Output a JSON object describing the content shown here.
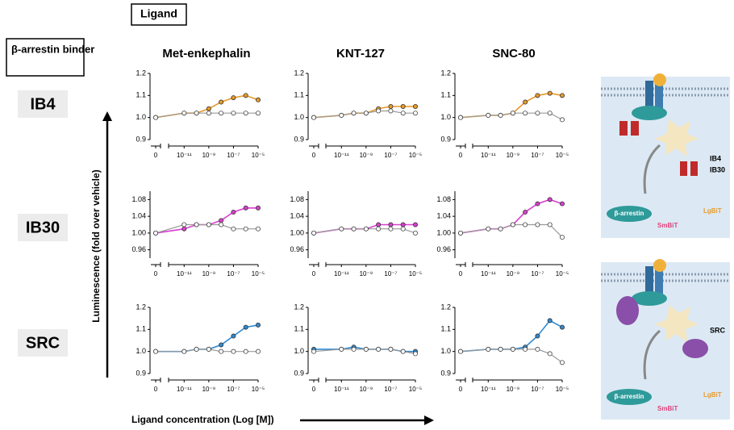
{
  "header": {
    "ligand": "Ligand",
    "binder": "β-arrestin binder"
  },
  "columns": [
    "Met-enkephalin",
    "KNT-127",
    "SNC-80"
  ],
  "rows": [
    "IB4",
    "IB30",
    "SRC"
  ],
  "y_axis_label": "Luminescence (fold over vehicle)",
  "x_axis_label": "Ligand concentration (Log [M])",
  "diagrams": [
    {
      "binder_1": "IB4",
      "binder_2": "IB30",
      "arrestin": "β-arrestin",
      "smbit": "SmBiT",
      "lgbit": "LgBiT"
    },
    {
      "binder_1": "SRC",
      "arrestin": "β-arrestin",
      "smbit": "SmBiT",
      "lgbit": "LgBiT"
    }
  ],
  "chart_data": [
    {
      "type": "line",
      "xscale": "log",
      "x": [
        0,
        1e-11,
        1e-10,
        1e-09,
        1e-08,
        1e-07,
        1e-06,
        1e-05
      ],
      "xlim": [
        1e-12,
        1e-05
      ],
      "xticks": [
        0,
        {
          "value": 1e-11,
          "label": "10⁻¹¹"
        },
        {
          "value": 1e-09,
          "label": "10⁻⁹"
        },
        {
          "value": 1e-07,
          "label": "10⁻⁷"
        },
        {
          "value": 1e-05,
          "label": "10⁻⁵"
        }
      ],
      "ylim": [
        0.9,
        1.2
      ],
      "yticks": [
        0.9,
        {
          "value": 1,
          "label": "1.0"
        },
        1.1,
        1.2
      ],
      "series": [
        {
          "color": "#e89a2c",
          "values": [
            1.0,
            1.02,
            1.02,
            1.04,
            1.07,
            1.09,
            1.1,
            1.08
          ]
        },
        {
          "color": "#9a9a9a",
          "values": [
            1.0,
            1.02,
            1.02,
            1.02,
            1.02,
            1.02,
            1.02,
            1.02
          ]
        }
      ]
    },
    {
      "type": "line",
      "xscale": "log",
      "x": [
        0,
        1e-11,
        1e-10,
        1e-09,
        1e-08,
        1e-07,
        1e-06,
        1e-05
      ],
      "xlim": [
        1e-12,
        1e-05
      ],
      "xticks": [
        0,
        {
          "value": 1e-11,
          "label": "10⁻¹¹"
        },
        {
          "value": 1e-09,
          "label": "10⁻⁹"
        },
        {
          "value": 1e-07,
          "label": "10⁻⁷"
        },
        {
          "value": 1e-05,
          "label": "10⁻⁵"
        }
      ],
      "ylim": [
        0.9,
        1.2
      ],
      "yticks": [
        0.9,
        {
          "value": 1,
          "label": "1.0"
        },
        1.1,
        1.2
      ],
      "series": [
        {
          "color": "#e89a2c",
          "values": [
            1.0,
            1.01,
            1.02,
            1.02,
            1.04,
            1.05,
            1.05,
            1.05
          ]
        },
        {
          "color": "#9a9a9a",
          "values": [
            1.0,
            1.01,
            1.02,
            1.02,
            1.03,
            1.03,
            1.02,
            1.02
          ]
        }
      ]
    },
    {
      "type": "line",
      "xscale": "log",
      "x": [
        0,
        1e-11,
        1e-10,
        1e-09,
        1e-08,
        1e-07,
        1e-06,
        1e-05
      ],
      "xlim": [
        1e-12,
        1e-05
      ],
      "xticks": [
        0,
        {
          "value": 1e-11,
          "label": "10⁻¹¹"
        },
        {
          "value": 1e-09,
          "label": "10⁻⁹"
        },
        {
          "value": 1e-07,
          "label": "10⁻⁷"
        },
        {
          "value": 1e-05,
          "label": "10⁻⁵"
        }
      ],
      "ylim": [
        0.9,
        1.2
      ],
      "yticks": [
        0.9,
        {
          "value": 1,
          "label": "1.0"
        },
        1.1,
        1.2
      ],
      "series": [
        {
          "color": "#e89a2c",
          "values": [
            1.0,
            1.01,
            1.01,
            1.02,
            1.07,
            1.1,
            1.11,
            1.1
          ]
        },
        {
          "color": "#9a9a9a",
          "values": [
            1.0,
            1.01,
            1.01,
            1.02,
            1.02,
            1.02,
            1.02,
            0.99
          ]
        }
      ]
    },
    {
      "type": "line",
      "xscale": "log",
      "x": [
        0,
        1e-11,
        1e-10,
        1e-09,
        1e-08,
        1e-07,
        1e-06,
        1e-05
      ],
      "xlim": [
        1e-12,
        1e-05
      ],
      "xticks": [
        0,
        {
          "value": 1e-11,
          "label": "10⁻¹¹"
        },
        {
          "value": 1e-09,
          "label": "10⁻⁹"
        },
        {
          "value": 1e-07,
          "label": "10⁻⁷"
        },
        {
          "value": 1e-05,
          "label": "10⁻⁵"
        }
      ],
      "ylim": [
        0.94,
        1.1
      ],
      "yticks": [
        0.96,
        {
          "value": 1,
          "label": "1.00"
        },
        1.04,
        1.08
      ],
      "series": [
        {
          "color": "#d93fcf",
          "values": [
            1.0,
            1.01,
            1.02,
            1.02,
            1.03,
            1.05,
            1.06,
            1.06
          ]
        },
        {
          "color": "#9a9a9a",
          "values": [
            1.0,
            1.02,
            1.02,
            1.02,
            1.02,
            1.01,
            1.01,
            1.01
          ]
        }
      ]
    },
    {
      "type": "line",
      "xscale": "log",
      "x": [
        0,
        1e-11,
        1e-10,
        1e-09,
        1e-08,
        1e-07,
        1e-06,
        1e-05
      ],
      "xlim": [
        1e-12,
        1e-05
      ],
      "xticks": [
        0,
        {
          "value": 1e-11,
          "label": "10⁻¹¹"
        },
        {
          "value": 1e-09,
          "label": "10⁻⁹"
        },
        {
          "value": 1e-07,
          "label": "10⁻⁷"
        },
        {
          "value": 1e-05,
          "label": "10⁻⁵"
        }
      ],
      "ylim": [
        0.94,
        1.1
      ],
      "yticks": [
        0.96,
        {
          "value": 1,
          "label": "1.00"
        },
        1.04,
        1.08
      ],
      "series": [
        {
          "color": "#d93fcf",
          "values": [
            1.0,
            1.01,
            1.01,
            1.01,
            1.02,
            1.02,
            1.02,
            1.02
          ]
        },
        {
          "color": "#9a9a9a",
          "values": [
            1.0,
            1.01,
            1.01,
            1.01,
            1.01,
            1.01,
            1.01,
            1.0
          ]
        }
      ]
    },
    {
      "type": "line",
      "xscale": "log",
      "x": [
        0,
        1e-11,
        1e-10,
        1e-09,
        1e-08,
        1e-07,
        1e-06,
        1e-05
      ],
      "xlim": [
        1e-12,
        1e-05
      ],
      "xticks": [
        0,
        {
          "value": 1e-11,
          "label": "10⁻¹¹"
        },
        {
          "value": 1e-09,
          "label": "10⁻⁹"
        },
        {
          "value": 1e-07,
          "label": "10⁻⁷"
        },
        {
          "value": 1e-05,
          "label": "10⁻⁵"
        }
      ],
      "ylim": [
        0.94,
        1.1
      ],
      "yticks": [
        0.96,
        {
          "value": 1,
          "label": "1.00"
        },
        1.04,
        1.08
      ],
      "series": [
        {
          "color": "#d93fcf",
          "values": [
            1.0,
            1.01,
            1.01,
            1.02,
            1.05,
            1.07,
            1.08,
            1.07
          ]
        },
        {
          "color": "#9a9a9a",
          "values": [
            1.0,
            1.01,
            1.01,
            1.02,
            1.02,
            1.02,
            1.02,
            0.99
          ]
        }
      ]
    },
    {
      "type": "line",
      "xscale": "log",
      "x": [
        0,
        1e-11,
        1e-10,
        1e-09,
        1e-08,
        1e-07,
        1e-06,
        1e-05
      ],
      "xlim": [
        1e-12,
        1e-05
      ],
      "xticks": [
        0,
        {
          "value": 1e-11,
          "label": "10⁻¹¹"
        },
        {
          "value": 1e-09,
          "label": "10⁻⁹"
        },
        {
          "value": 1e-07,
          "label": "10⁻⁷"
        },
        {
          "value": 1e-05,
          "label": "10⁻⁵"
        }
      ],
      "ylim": [
        0.9,
        1.2
      ],
      "yticks": [
        0.9,
        {
          "value": 1,
          "label": "1.0"
        },
        1.1,
        1.2
      ],
      "series": [
        {
          "color": "#2f8ad0",
          "values": [
            1.0,
            1.0,
            1.01,
            1.01,
            1.03,
            1.07,
            1.11,
            1.12
          ]
        },
        {
          "color": "#9a9a9a",
          "values": [
            1.0,
            1.0,
            1.01,
            1.01,
            1.0,
            1.0,
            1.0,
            1.0
          ]
        }
      ]
    },
    {
      "type": "line",
      "xscale": "log",
      "x": [
        0,
        1e-11,
        1e-10,
        1e-09,
        1e-08,
        1e-07,
        1e-06,
        1e-05
      ],
      "xlim": [
        1e-12,
        1e-05
      ],
      "xticks": [
        0,
        {
          "value": 1e-11,
          "label": "10⁻¹¹"
        },
        {
          "value": 1e-09,
          "label": "10⁻⁹"
        },
        {
          "value": 1e-07,
          "label": "10⁻⁷"
        },
        {
          "value": 1e-05,
          "label": "10⁻⁵"
        }
      ],
      "ylim": [
        0.9,
        1.2
      ],
      "yticks": [
        0.9,
        {
          "value": 1,
          "label": "1.0"
        },
        1.1,
        1.2
      ],
      "series": [
        {
          "color": "#2f8ad0",
          "values": [
            1.01,
            1.01,
            1.02,
            1.01,
            1.01,
            1.01,
            1.0,
            1.0
          ]
        },
        {
          "color": "#9a9a9a",
          "values": [
            1.0,
            1.01,
            1.01,
            1.01,
            1.01,
            1.01,
            1.0,
            0.99
          ]
        }
      ]
    },
    {
      "type": "line",
      "xscale": "log",
      "x": [
        0,
        1e-11,
        1e-10,
        1e-09,
        1e-08,
        1e-07,
        1e-06,
        1e-05
      ],
      "xlim": [
        1e-12,
        1e-05
      ],
      "xticks": [
        0,
        {
          "value": 1e-11,
          "label": "10⁻¹¹"
        },
        {
          "value": 1e-09,
          "label": "10⁻⁹"
        },
        {
          "value": 1e-07,
          "label": "10⁻⁷"
        },
        {
          "value": 1e-05,
          "label": "10⁻⁵"
        }
      ],
      "ylim": [
        0.9,
        1.2
      ],
      "yticks": [
        0.9,
        {
          "value": 1,
          "label": "1.0"
        },
        1.1,
        1.2
      ],
      "series": [
        {
          "color": "#2f8ad0",
          "values": [
            1.0,
            1.01,
            1.01,
            1.01,
            1.02,
            1.07,
            1.14,
            1.11
          ]
        },
        {
          "color": "#9a9a9a",
          "values": [
            1.0,
            1.01,
            1.01,
            1.01,
            1.01,
            1.01,
            0.99,
            0.95
          ]
        }
      ]
    }
  ]
}
